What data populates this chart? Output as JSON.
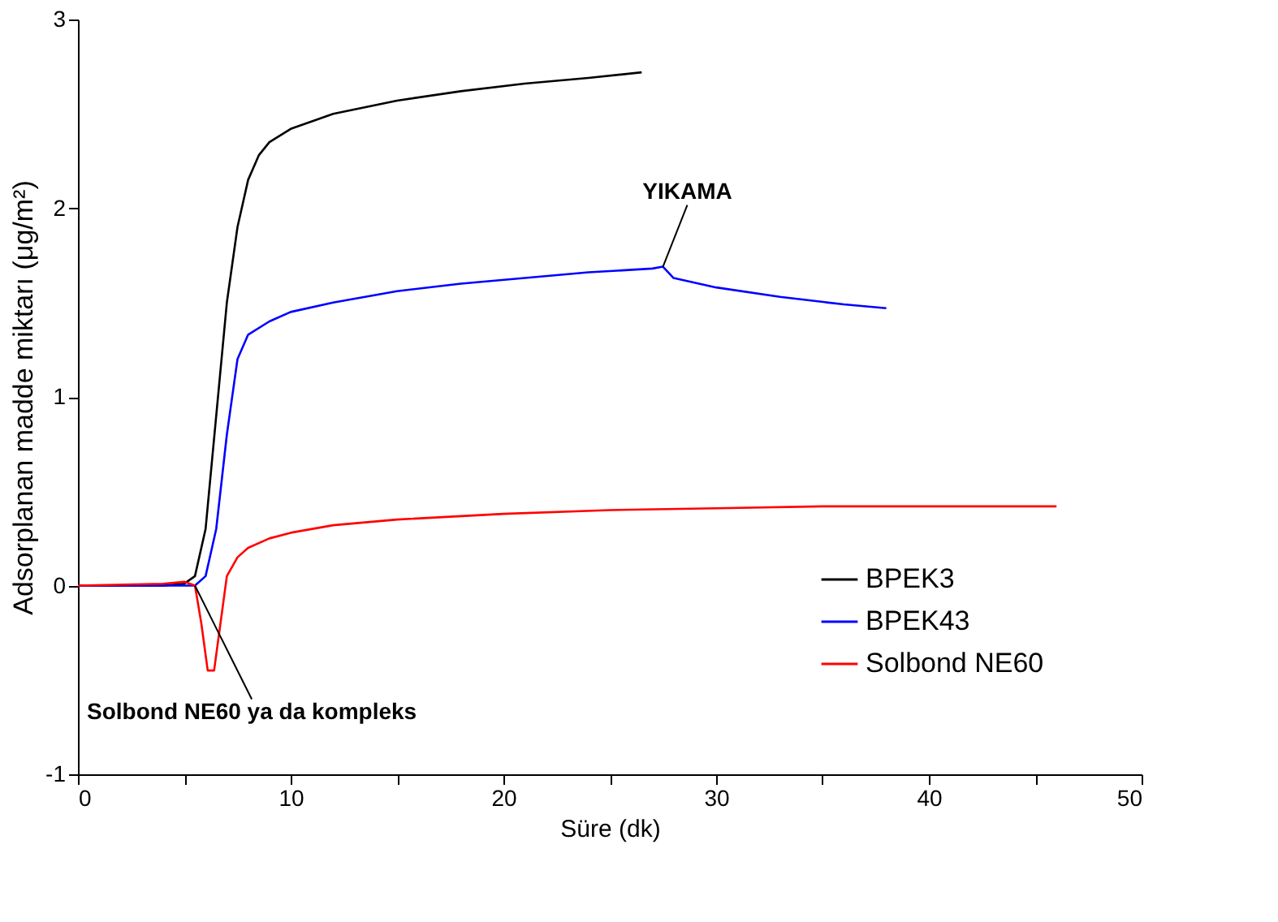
{
  "chart_data": {
    "type": "line",
    "xlabel": "Süre (dk)",
    "ylabel": "Adsorplanan madde miktarı  (μg/m²)",
    "xlim": [
      0,
      50
    ],
    "ylim": [
      -1,
      3
    ],
    "xticks": [
      0,
      {
        "value": 5,
        "label": null
      },
      10,
      {
        "value": 15,
        "label": null
      },
      20,
      {
        "value": 25,
        "label": null
      },
      30,
      {
        "value": 35,
        "label": null
      },
      40,
      {
        "value": 45,
        "label": null
      },
      50
    ],
    "yticks": [
      -1,
      0,
      1,
      2,
      3
    ],
    "grid": false,
    "legend": "bottom right",
    "marker": "none",
    "line_style": "solid",
    "series": [
      {
        "name": "BPEK3",
        "color": "#000000",
        "x": [
          0,
          2,
          4,
          5,
          5.5,
          6,
          6.5,
          7,
          7.5,
          8,
          8.5,
          9,
          10,
          12,
          15,
          18,
          21,
          24,
          26.5
        ],
        "values": [
          0,
          0,
          0,
          0.01,
          0.05,
          0.3,
          0.9,
          1.5,
          1.9,
          2.15,
          2.28,
          2.35,
          2.42,
          2.5,
          2.57,
          2.62,
          2.66,
          2.69,
          2.72
        ]
      },
      {
        "name": "BPEK43",
        "color": "#0000ff",
        "x": [
          0,
          2,
          4,
          5.5,
          6,
          6.5,
          7,
          7.5,
          8,
          9,
          10,
          12,
          15,
          18,
          21,
          24,
          27,
          27.5,
          28,
          30,
          33,
          36,
          38
        ],
        "values": [
          0,
          0,
          0,
          0,
          0.05,
          0.3,
          0.8,
          1.2,
          1.33,
          1.4,
          1.45,
          1.5,
          1.56,
          1.6,
          1.63,
          1.66,
          1.68,
          1.69,
          1.63,
          1.58,
          1.53,
          1.49,
          1.47
        ]
      },
      {
        "name": "Solbond NE60",
        "color": "#ff0000",
        "x": [
          0,
          4,
          5,
          5.5,
          5.8,
          6.1,
          6.4,
          6.7,
          7,
          7.5,
          8,
          9,
          10,
          12,
          15,
          20,
          25,
          30,
          35,
          40,
          46
        ],
        "values": [
          0,
          0.01,
          0.02,
          0,
          -0.2,
          -0.45,
          -0.45,
          -0.2,
          0.05,
          0.15,
          0.2,
          0.25,
          0.28,
          0.32,
          0.35,
          0.38,
          0.4,
          0.41,
          0.42,
          0.42,
          0.42
        ]
      }
    ],
    "annotations": [
      {
        "text": "YIKAMA",
        "x": 27.5,
        "y": 1.69
      },
      {
        "text": "Solbond NE60 ya da kompleks",
        "x": 5.5,
        "y": 0
      }
    ]
  }
}
